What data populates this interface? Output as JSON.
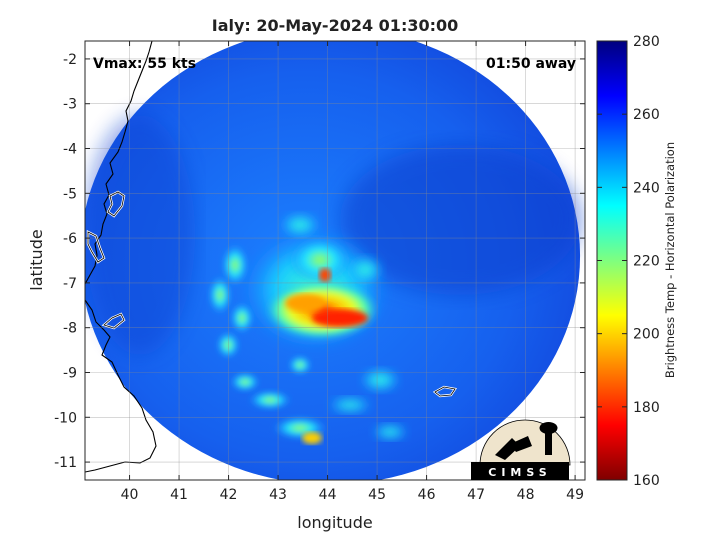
{
  "chart_data": {
    "type": "heatmap",
    "title": "Ialy: 20-May-2024 01:30:00",
    "xlabel": "longitude",
    "ylabel": "latitude",
    "xlim": [
      39.1,
      49.2
    ],
    "ylim": [
      -11.4,
      -1.6
    ],
    "x_ticks": [
      "40",
      "41",
      "42",
      "43",
      "44",
      "45",
      "46",
      "47",
      "48",
      "49"
    ],
    "y_ticks": [
      "-2",
      "-3",
      "-4",
      "-5",
      "-6",
      "-7",
      "-8",
      "-9",
      "-10",
      "-11"
    ],
    "grid": true,
    "annotations": {
      "vmax": "Vmax: 55 kts",
      "time_away": "01:50 away"
    },
    "swath": {
      "center_lon": 44.05,
      "center_lat": -6.4,
      "radius_lon": 5.05,
      "radius_lat": 5.1
    },
    "storm_center": {
      "lon": 44.0,
      "lat": -7.6
    },
    "coldest_cores": [
      {
        "lon": 44.3,
        "lat": -7.7,
        "value": 185
      },
      {
        "lon": 43.7,
        "lat": -7.5,
        "value": 195
      },
      {
        "lon": 43.9,
        "lat": -6.75,
        "value": 190
      },
      {
        "lon": 43.5,
        "lat": -10.45,
        "value": 200
      }
    ],
    "colorbar": {
      "label": "Brightness Temp - Horizontal Polarization",
      "min": 160,
      "max": 280,
      "ticks": [
        "280",
        "260",
        "240",
        "220",
        "200",
        "180",
        "160"
      ],
      "colormap": "jet",
      "colors": [
        "#7f0000",
        "#ff0000",
        "#ff7f00",
        "#ffff00",
        "#7fff7f",
        "#00ffff",
        "#007fff",
        "#0000ff",
        "#00007f"
      ]
    },
    "logo_text": "CIMSS"
  }
}
